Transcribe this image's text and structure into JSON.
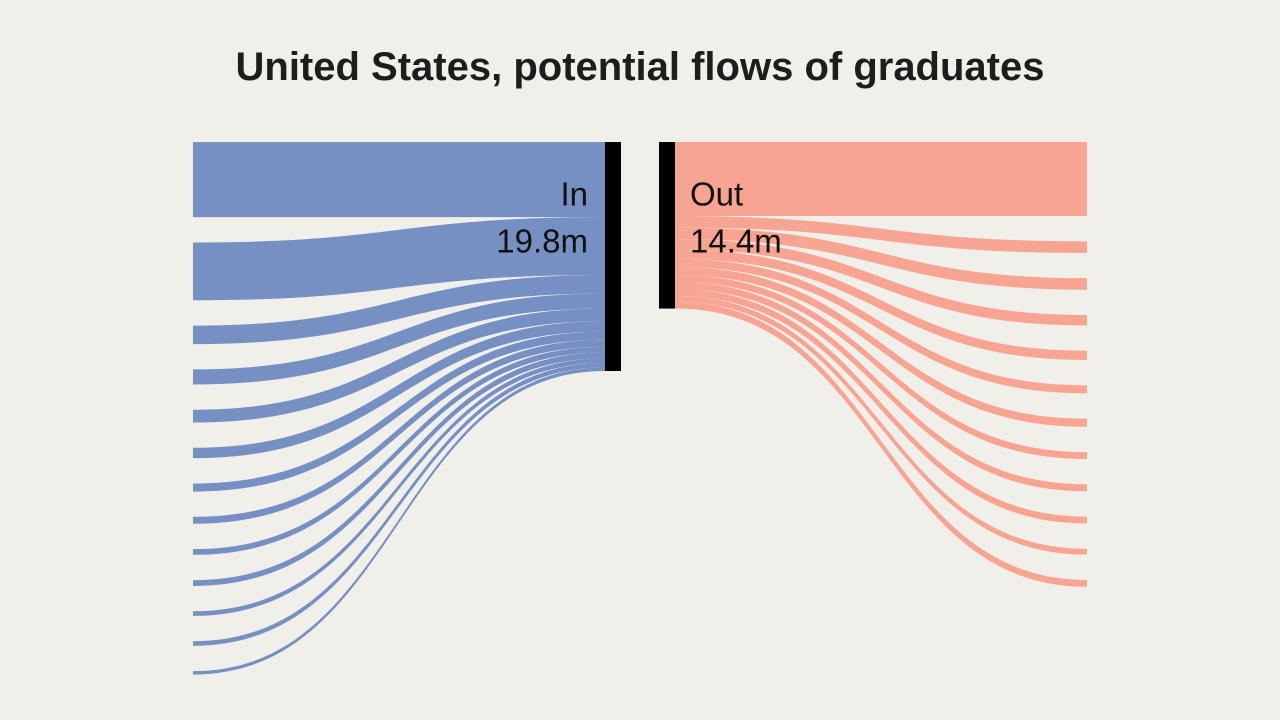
{
  "chart_data": {
    "type": "sankey",
    "title": "United States, potential flows of graduates",
    "series": [
      {
        "name": "In",
        "value": 19.8,
        "value_label": "19.8m",
        "color": "#7790c3",
        "values": [
          6.5,
          5.0,
          1.6,
          1.3,
          1.1,
          0.9,
          0.7,
          0.6,
          0.5,
          0.5,
          0.4,
          0.4,
          0.3
        ]
      },
      {
        "name": "Out",
        "value": 14.4,
        "value_label": "14.4m",
        "color": "#f8a493",
        "values": [
          6.4,
          1.0,
          1.0,
          0.9,
          0.8,
          0.7,
          0.7,
          0.6,
          0.6,
          0.6,
          0.5,
          0.6
        ]
      }
    ]
  }
}
